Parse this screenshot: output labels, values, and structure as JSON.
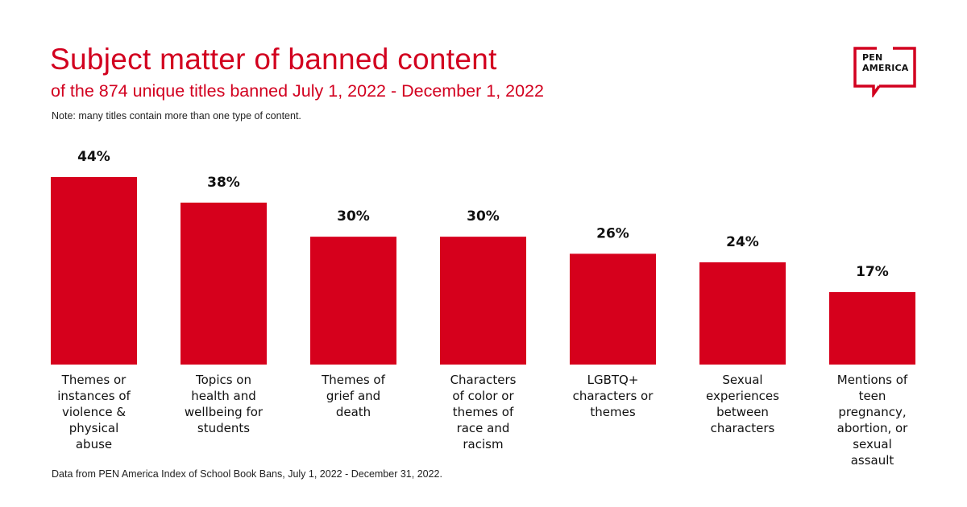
{
  "header": {
    "title": "Subject matter of banned content",
    "subtitle": "of the 874 unique titles banned July 1, 2022 - December 1, 2022",
    "note": "Note: many titles contain more than one type of content."
  },
  "logo": {
    "line1": "PEN",
    "line2": "AMERICA",
    "icon": "speech-bubble-bracket-logo",
    "color": "#d2001f"
  },
  "footer": {
    "source": "Data from PEN America Index of School Book Bans, July 1, 2022 - December 31, 2022."
  },
  "colors": {
    "accent": "#d2001f",
    "bar": "#d6001c",
    "text": "#111111"
  },
  "chart_data": {
    "type": "bar",
    "title": "Subject matter of banned content",
    "subtitle": "of the 874 unique titles banned July 1, 2022 - December 1, 2022",
    "xlabel": "",
    "ylabel": "",
    "ylim": [
      0,
      44
    ],
    "grid": false,
    "legend": "none",
    "value_suffix": "%",
    "categories": [
      "Themes or instances of violence & physical abuse",
      "Topics on health and wellbeing for students",
      "Themes of grief and death",
      "Characters of color or themes of race and racism",
      "LGBTQ+ characters or themes",
      "Sexual experiences between characters",
      "Mentions of teen pregnancy, abortion, or sexual assault"
    ],
    "category_lines": [
      [
        "Themes or",
        "instances of",
        "violence &",
        "physical",
        "abuse"
      ],
      [
        "Topics on",
        "health and",
        "wellbeing for",
        "students"
      ],
      [
        "Themes of",
        "grief and",
        "death"
      ],
      [
        "Characters",
        "of color or",
        "themes of",
        "race and",
        "racism"
      ],
      [
        "LGBTQ+",
        "characters or",
        "themes"
      ],
      [
        "Sexual",
        "experiences",
        "between",
        "characters"
      ],
      [
        "Mentions of",
        "teen",
        "pregnancy,",
        "abortion, or",
        "sexual",
        "assault"
      ]
    ],
    "values": [
      44,
      38,
      30,
      30,
      26,
      24,
      17
    ],
    "data_labels": [
      "44%",
      "38%",
      "30%",
      "30%",
      "26%",
      "24%",
      "17%"
    ]
  }
}
